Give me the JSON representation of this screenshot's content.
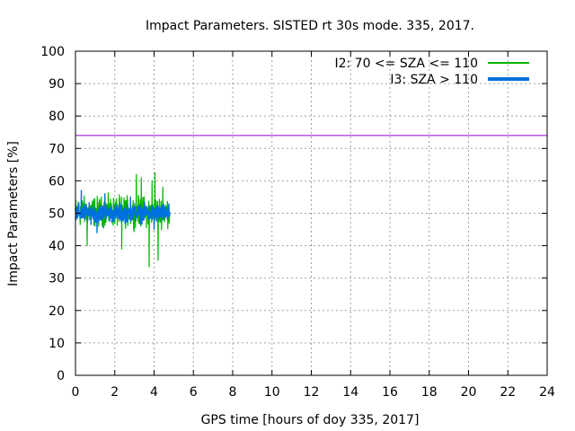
{
  "chart_data": {
    "type": "line",
    "title": "Impact Parameters. SISTED rt 30s mode. 335, 2017.",
    "xlabel": "GPS time [hours of doy 335, 2017]",
    "ylabel": "Impact Parameters [%]",
    "xlim": [
      0,
      24
    ],
    "ylim": [
      0,
      100
    ],
    "xticks": [
      0,
      2,
      4,
      6,
      8,
      10,
      12,
      14,
      16,
      18,
      20,
      22,
      24
    ],
    "yticks": [
      0,
      10,
      20,
      30,
      40,
      50,
      60,
      70,
      80,
      90,
      100
    ],
    "grid": true,
    "legend_position": "top-right",
    "reference_line": {
      "y": 74,
      "color": "#9400d3"
    },
    "series": [
      {
        "name": "I2: 70 <= SZA <= 110",
        "color": "#00b400",
        "x_range": [
          0,
          4.8
        ],
        "center": 50,
        "typical_range": [
          44,
          57
        ],
        "extremes": [
          {
            "x": 3.75,
            "y": 33.5
          },
          {
            "x": 4.2,
            "y": 35.5
          },
          {
            "x": 2.35,
            "y": 39.0
          },
          {
            "x": 0.6,
            "y": 40.0
          },
          {
            "x": 3.35,
            "y": 61.0
          },
          {
            "x": 3.1,
            "y": 62.0
          },
          {
            "x": 4.05,
            "y": 62.5
          },
          {
            "x": 3.9,
            "y": 60.0
          },
          {
            "x": 4.45,
            "y": 58.0
          }
        ]
      },
      {
        "name": "I3: SZA > 110",
        "color": "#0070e0",
        "x_range": [
          0,
          4.8
        ],
        "center": 50,
        "typical_range": [
          46,
          54
        ],
        "extremes": [
          {
            "x": 0.3,
            "y": 57.0
          },
          {
            "x": 1.5,
            "y": 56.0
          },
          {
            "x": 2.8,
            "y": 55.0
          },
          {
            "x": 1.1,
            "y": 44.0
          },
          {
            "x": 4.0,
            "y": 45.0
          }
        ]
      }
    ]
  }
}
